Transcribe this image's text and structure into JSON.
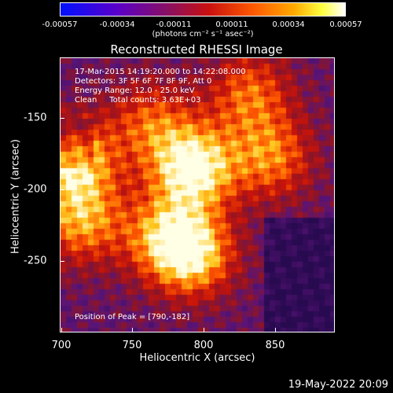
{
  "colorbar": {
    "ticks": [
      "-0.00057",
      "-0.00034",
      "-0.00011",
      "0.00011",
      "0.00034",
      "0.00057"
    ],
    "units": "(photons cm⁻² s⁻¹ asec⁻²)"
  },
  "title": "Reconstructed RHESSI Image",
  "info": {
    "line1": "17-Mar-2015 14:19:20.000 to 14:22:08.000",
    "line2": "Detectors: 3F 5F 6F 7F 8F 9F, Att 0",
    "line3": "Energy Range: 12.0 - 25.0 keV",
    "line4": "Clean     Total counts: 3.63E+03",
    "peak": "Position of Peak = [790,-182]"
  },
  "axes": {
    "xlabel": "Heliocentric X (arcsec)",
    "ylabel": "Heliocentric Y (arcsec)",
    "xticks": [
      "700",
      "750",
      "800",
      "850"
    ],
    "yticks": [
      "-150",
      "-200",
      "-250"
    ]
  },
  "timestamp": "19-May-2022 20:09",
  "chart_data": {
    "type": "heatmap",
    "title": "Reconstructed RHESSI Image",
    "xlabel": "Heliocentric X (arcsec)",
    "ylabel": "Heliocentric Y (arcsec)",
    "xlim": [
      697,
      890
    ],
    "ylim": [
      -298,
      -105
    ],
    "colorbar_range": [
      -0.00057,
      0.00057
    ],
    "peak": [
      790,
      -182
    ],
    "hotspots": [
      {
        "x": 790,
        "y": -182,
        "level": 1.0
      },
      {
        "x": 706,
        "y": -178,
        "level": 0.85
      },
      {
        "x": 790,
        "y": -243,
        "level": 0.8
      },
      {
        "x": 712,
        "y": -220,
        "level": 0.65
      },
      {
        "x": 845,
        "y": -175,
        "level": 0.6
      },
      {
        "x": 770,
        "y": -230,
        "level": 0.6
      },
      {
        "x": 830,
        "y": -130,
        "level": 0.55
      },
      {
        "x": 760,
        "y": -150,
        "level": 0.5
      }
    ],
    "colors": {
      "low": "#3a1260",
      "mid": "#c81010",
      "high": "#ffffff"
    }
  }
}
